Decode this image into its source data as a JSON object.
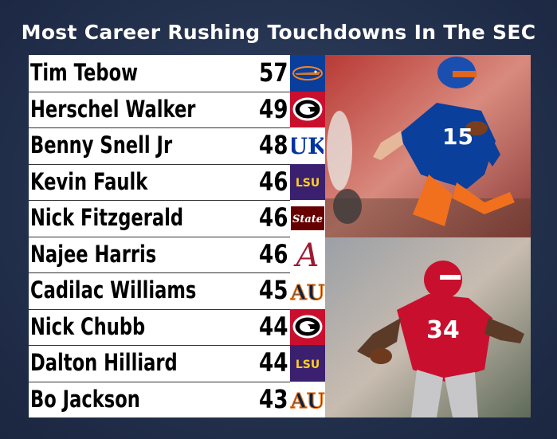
{
  "title": "Most Career Rushing Touchdowns In The SEC",
  "colors": {
    "background": "#24324e",
    "florida": "#0a3e9c",
    "georgia": "#c8102e",
    "kentucky": "#0033a0",
    "lsu": "#3b2070",
    "lsu_gold": "#fdd023",
    "msstate": "#660000",
    "alabama": "#9e1b32",
    "auburn": "#0c2340",
    "auburn_orange": "#e87722"
  },
  "chart_data": {
    "type": "table",
    "title": "Most Career Rushing Touchdowns In The SEC",
    "rows": [
      {
        "player": "Tim Tebow",
        "touchdowns": 57,
        "school_logo": "florida-gators-logo"
      },
      {
        "player": "Herschel Walker",
        "touchdowns": 49,
        "school_logo": "georgia-g-logo"
      },
      {
        "player": "Benny Snell Jr",
        "touchdowns": 48,
        "school_logo": "kentucky-uk-logo"
      },
      {
        "player": "Kevin Faulk",
        "touchdowns": 46,
        "school_logo": "lsu-logo"
      },
      {
        "player": "Nick Fitzgerald",
        "touchdowns": 46,
        "school_logo": "mississippi-state-logo"
      },
      {
        "player": "Najee Harris",
        "touchdowns": 46,
        "school_logo": "alabama-a-logo"
      },
      {
        "player": "Cadilac Williams",
        "touchdowns": 45,
        "school_logo": "auburn-au-logo"
      },
      {
        "player": "Nick Chubb",
        "touchdowns": 44,
        "school_logo": "georgia-g-logo"
      },
      {
        "player": "Dalton Hilliard",
        "touchdowns": 44,
        "school_logo": "lsu-logo"
      },
      {
        "player": "Bo Jackson",
        "touchdowns": 43,
        "school_logo": "auburn-au-logo"
      }
    ],
    "logo_text": {
      "lsu": "LSU",
      "msstate": "State"
    },
    "photo_jersey_numbers": [
      "15",
      "34"
    ]
  }
}
